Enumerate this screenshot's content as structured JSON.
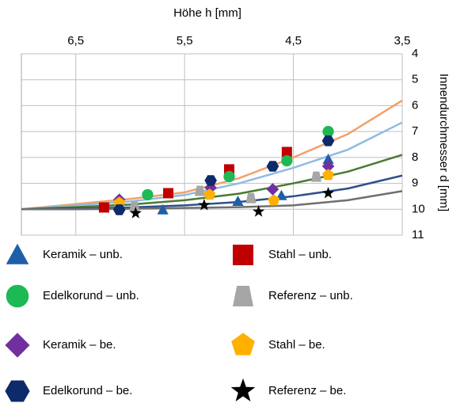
{
  "chart_data": {
    "type": "scatter",
    "x_label": "Höhe h [mm]",
    "y_label": "Innendurchmesser d [mm]",
    "xlim": [
      7,
      3.5
    ],
    "xticks": [
      {
        "value": 6.5,
        "label": "6,5"
      },
      {
        "value": 5.5,
        "label": "5,5"
      },
      {
        "value": 4.5,
        "label": "4,5"
      },
      {
        "value": 3.5,
        "label": "3,5"
      }
    ],
    "ylim": [
      4,
      11
    ],
    "yticks": [
      4,
      5,
      6,
      7,
      8,
      9,
      10,
      11
    ],
    "grid": true,
    "curves": [
      {
        "color": "#f4a06a",
        "x": [
          7,
          6.5,
          6,
          5.5,
          5,
          4.5,
          4,
          3.5
        ],
        "values": [
          10,
          9.8,
          9.6,
          9.35,
          8.8,
          8.0,
          7.1,
          5.8
        ]
      },
      {
        "color": "#8fbbe3",
        "x": [
          7,
          6.5,
          6,
          5.5,
          5,
          4.5,
          4,
          3.5
        ],
        "values": [
          10,
          9.85,
          9.7,
          9.45,
          9.0,
          8.4,
          7.7,
          6.65
        ]
      },
      {
        "color": "#4a7a32",
        "x": [
          7,
          6.5,
          6,
          5.5,
          5,
          4.5,
          4,
          3.5
        ],
        "values": [
          10,
          9.92,
          9.82,
          9.65,
          9.4,
          9.0,
          8.55,
          7.9
        ]
      },
      {
        "color": "#2f4f8a",
        "x": [
          7,
          6.5,
          6,
          5.5,
          5,
          4.5,
          4,
          3.5
        ],
        "values": [
          10,
          9.97,
          9.93,
          9.85,
          9.72,
          9.5,
          9.2,
          8.7
        ]
      },
      {
        "color": "#6f6f6f",
        "x": [
          7,
          6.5,
          6,
          5.5,
          5,
          4.5,
          4,
          3.5
        ],
        "values": [
          10,
          10,
          9.98,
          9.95,
          9.92,
          9.85,
          9.65,
          9.3
        ]
      }
    ],
    "series": [
      {
        "name": "Keramik – unb.",
        "marker": "triangle",
        "color": "#1f5fa8",
        "x": [
          5.7,
          5.01,
          4.61,
          4.18
        ],
        "values": [
          10.02,
          9.69,
          9.47,
          8.07
        ]
      },
      {
        "name": "Stahl – unb.",
        "marker": "square",
        "color": "#c00000",
        "x": [
          6.24,
          5.65,
          5.09,
          4.56
        ],
        "values": [
          9.93,
          9.38,
          8.46,
          7.79
        ]
      },
      {
        "name": "Edelkorund – unb.",
        "marker": "circle",
        "color": "#1db954",
        "x": [
          5.84,
          5.09,
          4.56,
          4.18
        ],
        "values": [
          9.44,
          8.74,
          8.13,
          7.0
        ]
      },
      {
        "name": "Referenz – unb.",
        "marker": "trapezoid",
        "color": "#a6a6a6",
        "x": [
          5.96,
          5.36,
          4.89,
          4.29
        ],
        "values": [
          9.9,
          9.29,
          9.57,
          8.74
        ]
      },
      {
        "name": "Keramik – be.",
        "marker": "diamond",
        "color": "#7030a0",
        "x": [
          6.1,
          5.26,
          4.69,
          4.18
        ],
        "values": [
          9.63,
          9.17,
          9.23,
          8.34
        ]
      },
      {
        "name": "Stahl – be.",
        "marker": "pentagon",
        "color": "#ffb000",
        "x": [
          6.1,
          5.27,
          4.68,
          4.18
        ],
        "values": [
          9.75,
          9.44,
          9.66,
          8.68
        ]
      },
      {
        "name": "Edelkorund – be.",
        "marker": "hexagon",
        "color": "#0d2a6b",
        "x": [
          6.1,
          5.26,
          4.69,
          4.18
        ],
        "values": [
          10.02,
          8.89,
          8.34,
          7.36
        ]
      },
      {
        "name": "Referenz – be.",
        "marker": "star",
        "color": "#000000",
        "x": [
          5.95,
          5.32,
          4.82,
          4.18
        ],
        "values": [
          10.15,
          9.84,
          10.09,
          9.38
        ]
      }
    ]
  }
}
